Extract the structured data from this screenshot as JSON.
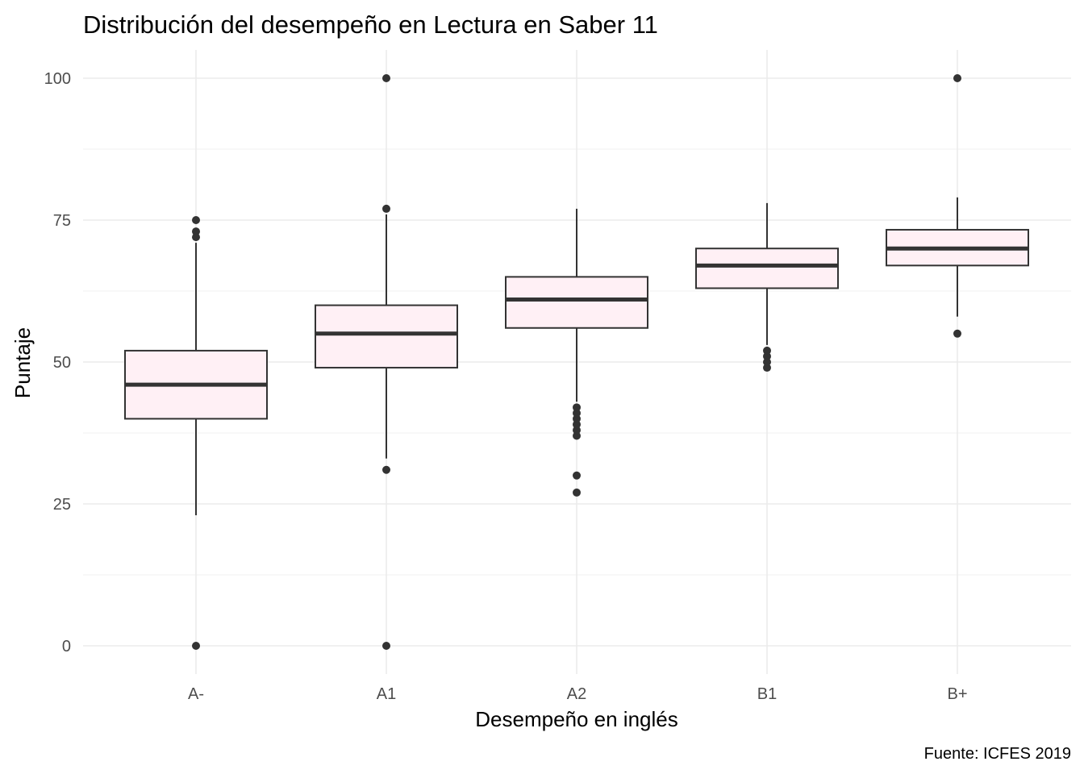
{
  "chart_data": {
    "type": "boxplot",
    "title": "Distribución del desempeño en Lectura en Saber 11",
    "xlabel": "Desempeño en inglés",
    "ylabel": "Puntaje",
    "caption": "Fuente: ICFES 2019",
    "categories": [
      "A-",
      "A1",
      "A2",
      "B1",
      "B+"
    ],
    "ylim": [
      -5,
      105
    ],
    "yticks": [
      0,
      25,
      50,
      75,
      100
    ],
    "yticks_labels": [
      "0",
      "25",
      "50",
      "75",
      "100"
    ],
    "grid": true,
    "legend": "none",
    "boxes": [
      {
        "category": "A-",
        "whisker_low": 23,
        "q1": 40,
        "median": 46,
        "q3": 52,
        "whisker_high": 71,
        "outliers": [
          0,
          72,
          73,
          75
        ]
      },
      {
        "category": "A1",
        "whisker_low": 33,
        "q1": 49,
        "median": 55,
        "q3": 60,
        "whisker_high": 76,
        "outliers": [
          0,
          31,
          77,
          100
        ]
      },
      {
        "category": "A2",
        "whisker_low": 43,
        "q1": 56,
        "median": 61,
        "q3": 65,
        "whisker_high": 77,
        "outliers": [
          27,
          30,
          37,
          38,
          39,
          40,
          41,
          42
        ]
      },
      {
        "category": "B1",
        "whisker_low": 53,
        "q1": 63,
        "median": 67,
        "q3": 70,
        "whisker_high": 78,
        "outliers": [
          49,
          50,
          51,
          52
        ]
      },
      {
        "category": "B+",
        "whisker_low": 58,
        "q1": 67,
        "median": 70,
        "q3": 73.3,
        "whisker_high": 79,
        "outliers": [
          55,
          100
        ]
      }
    ],
    "colors": {
      "box_fill": "#fff0f5",
      "box_stroke": "#333333",
      "point": "#333333",
      "grid": "#ebebeb"
    }
  }
}
